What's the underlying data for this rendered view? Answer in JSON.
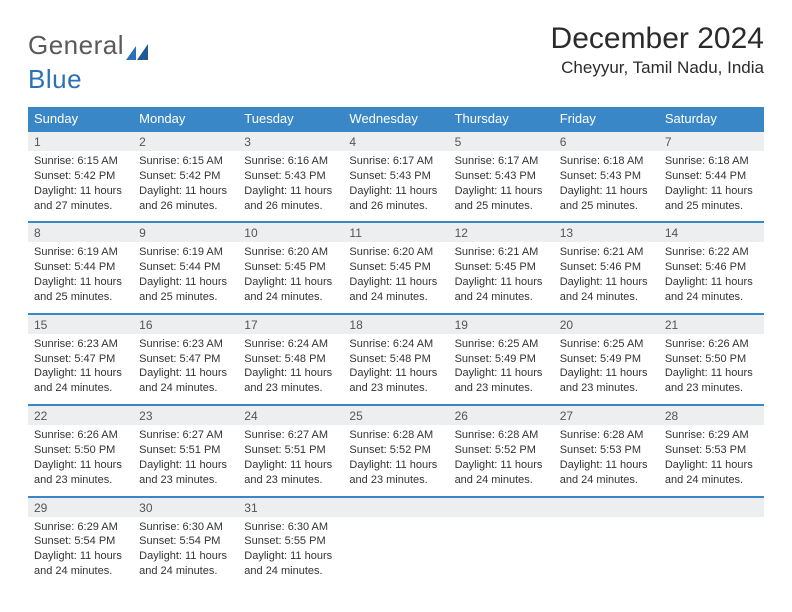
{
  "brand": {
    "part1": "General",
    "part2": "Blue"
  },
  "title": "December 2024",
  "location": "Cheyyur, Tamil Nadu, India",
  "colors": {
    "header_bg": "#3a87c8",
    "header_text": "#ffffff",
    "daynum_bg": "#eceeef",
    "week_border": "#3a87c8",
    "brand_gray": "#5a5a5a",
    "brand_blue": "#2b71b8",
    "body_text": "#333333",
    "background": "#ffffff"
  },
  "typography": {
    "title_fontsize": 30,
    "location_fontsize": 17,
    "dow_fontsize": 13,
    "daynum_fontsize": 12,
    "detail_fontsize": 11,
    "brand_fontsize": 26
  },
  "dow": [
    "Sunday",
    "Monday",
    "Tuesday",
    "Wednesday",
    "Thursday",
    "Friday",
    "Saturday"
  ],
  "weeks": [
    [
      {
        "n": "1",
        "sunrise": "Sunrise: 6:15 AM",
        "sunset": "Sunset: 5:42 PM",
        "d1": "Daylight: 11 hours",
        "d2": "and 27 minutes."
      },
      {
        "n": "2",
        "sunrise": "Sunrise: 6:15 AM",
        "sunset": "Sunset: 5:42 PM",
        "d1": "Daylight: 11 hours",
        "d2": "and 26 minutes."
      },
      {
        "n": "3",
        "sunrise": "Sunrise: 6:16 AM",
        "sunset": "Sunset: 5:43 PM",
        "d1": "Daylight: 11 hours",
        "d2": "and 26 minutes."
      },
      {
        "n": "4",
        "sunrise": "Sunrise: 6:17 AM",
        "sunset": "Sunset: 5:43 PM",
        "d1": "Daylight: 11 hours",
        "d2": "and 26 minutes."
      },
      {
        "n": "5",
        "sunrise": "Sunrise: 6:17 AM",
        "sunset": "Sunset: 5:43 PM",
        "d1": "Daylight: 11 hours",
        "d2": "and 25 minutes."
      },
      {
        "n": "6",
        "sunrise": "Sunrise: 6:18 AM",
        "sunset": "Sunset: 5:43 PM",
        "d1": "Daylight: 11 hours",
        "d2": "and 25 minutes."
      },
      {
        "n": "7",
        "sunrise": "Sunrise: 6:18 AM",
        "sunset": "Sunset: 5:44 PM",
        "d1": "Daylight: 11 hours",
        "d2": "and 25 minutes."
      }
    ],
    [
      {
        "n": "8",
        "sunrise": "Sunrise: 6:19 AM",
        "sunset": "Sunset: 5:44 PM",
        "d1": "Daylight: 11 hours",
        "d2": "and 25 minutes."
      },
      {
        "n": "9",
        "sunrise": "Sunrise: 6:19 AM",
        "sunset": "Sunset: 5:44 PM",
        "d1": "Daylight: 11 hours",
        "d2": "and 25 minutes."
      },
      {
        "n": "10",
        "sunrise": "Sunrise: 6:20 AM",
        "sunset": "Sunset: 5:45 PM",
        "d1": "Daylight: 11 hours",
        "d2": "and 24 minutes."
      },
      {
        "n": "11",
        "sunrise": "Sunrise: 6:20 AM",
        "sunset": "Sunset: 5:45 PM",
        "d1": "Daylight: 11 hours",
        "d2": "and 24 minutes."
      },
      {
        "n": "12",
        "sunrise": "Sunrise: 6:21 AM",
        "sunset": "Sunset: 5:45 PM",
        "d1": "Daylight: 11 hours",
        "d2": "and 24 minutes."
      },
      {
        "n": "13",
        "sunrise": "Sunrise: 6:21 AM",
        "sunset": "Sunset: 5:46 PM",
        "d1": "Daylight: 11 hours",
        "d2": "and 24 minutes."
      },
      {
        "n": "14",
        "sunrise": "Sunrise: 6:22 AM",
        "sunset": "Sunset: 5:46 PM",
        "d1": "Daylight: 11 hours",
        "d2": "and 24 minutes."
      }
    ],
    [
      {
        "n": "15",
        "sunrise": "Sunrise: 6:23 AM",
        "sunset": "Sunset: 5:47 PM",
        "d1": "Daylight: 11 hours",
        "d2": "and 24 minutes."
      },
      {
        "n": "16",
        "sunrise": "Sunrise: 6:23 AM",
        "sunset": "Sunset: 5:47 PM",
        "d1": "Daylight: 11 hours",
        "d2": "and 24 minutes."
      },
      {
        "n": "17",
        "sunrise": "Sunrise: 6:24 AM",
        "sunset": "Sunset: 5:48 PM",
        "d1": "Daylight: 11 hours",
        "d2": "and 23 minutes."
      },
      {
        "n": "18",
        "sunrise": "Sunrise: 6:24 AM",
        "sunset": "Sunset: 5:48 PM",
        "d1": "Daylight: 11 hours",
        "d2": "and 23 minutes."
      },
      {
        "n": "19",
        "sunrise": "Sunrise: 6:25 AM",
        "sunset": "Sunset: 5:49 PM",
        "d1": "Daylight: 11 hours",
        "d2": "and 23 minutes."
      },
      {
        "n": "20",
        "sunrise": "Sunrise: 6:25 AM",
        "sunset": "Sunset: 5:49 PM",
        "d1": "Daylight: 11 hours",
        "d2": "and 23 minutes."
      },
      {
        "n": "21",
        "sunrise": "Sunrise: 6:26 AM",
        "sunset": "Sunset: 5:50 PM",
        "d1": "Daylight: 11 hours",
        "d2": "and 23 minutes."
      }
    ],
    [
      {
        "n": "22",
        "sunrise": "Sunrise: 6:26 AM",
        "sunset": "Sunset: 5:50 PM",
        "d1": "Daylight: 11 hours",
        "d2": "and 23 minutes."
      },
      {
        "n": "23",
        "sunrise": "Sunrise: 6:27 AM",
        "sunset": "Sunset: 5:51 PM",
        "d1": "Daylight: 11 hours",
        "d2": "and 23 minutes."
      },
      {
        "n": "24",
        "sunrise": "Sunrise: 6:27 AM",
        "sunset": "Sunset: 5:51 PM",
        "d1": "Daylight: 11 hours",
        "d2": "and 23 minutes."
      },
      {
        "n": "25",
        "sunrise": "Sunrise: 6:28 AM",
        "sunset": "Sunset: 5:52 PM",
        "d1": "Daylight: 11 hours",
        "d2": "and 23 minutes."
      },
      {
        "n": "26",
        "sunrise": "Sunrise: 6:28 AM",
        "sunset": "Sunset: 5:52 PM",
        "d1": "Daylight: 11 hours",
        "d2": "and 24 minutes."
      },
      {
        "n": "27",
        "sunrise": "Sunrise: 6:28 AM",
        "sunset": "Sunset: 5:53 PM",
        "d1": "Daylight: 11 hours",
        "d2": "and 24 minutes."
      },
      {
        "n": "28",
        "sunrise": "Sunrise: 6:29 AM",
        "sunset": "Sunset: 5:53 PM",
        "d1": "Daylight: 11 hours",
        "d2": "and 24 minutes."
      }
    ],
    [
      {
        "n": "29",
        "sunrise": "Sunrise: 6:29 AM",
        "sunset": "Sunset: 5:54 PM",
        "d1": "Daylight: 11 hours",
        "d2": "and 24 minutes."
      },
      {
        "n": "30",
        "sunrise": "Sunrise: 6:30 AM",
        "sunset": "Sunset: 5:54 PM",
        "d1": "Daylight: 11 hours",
        "d2": "and 24 minutes."
      },
      {
        "n": "31",
        "sunrise": "Sunrise: 6:30 AM",
        "sunset": "Sunset: 5:55 PM",
        "d1": "Daylight: 11 hours",
        "d2": "and 24 minutes."
      },
      null,
      null,
      null,
      null
    ]
  ]
}
